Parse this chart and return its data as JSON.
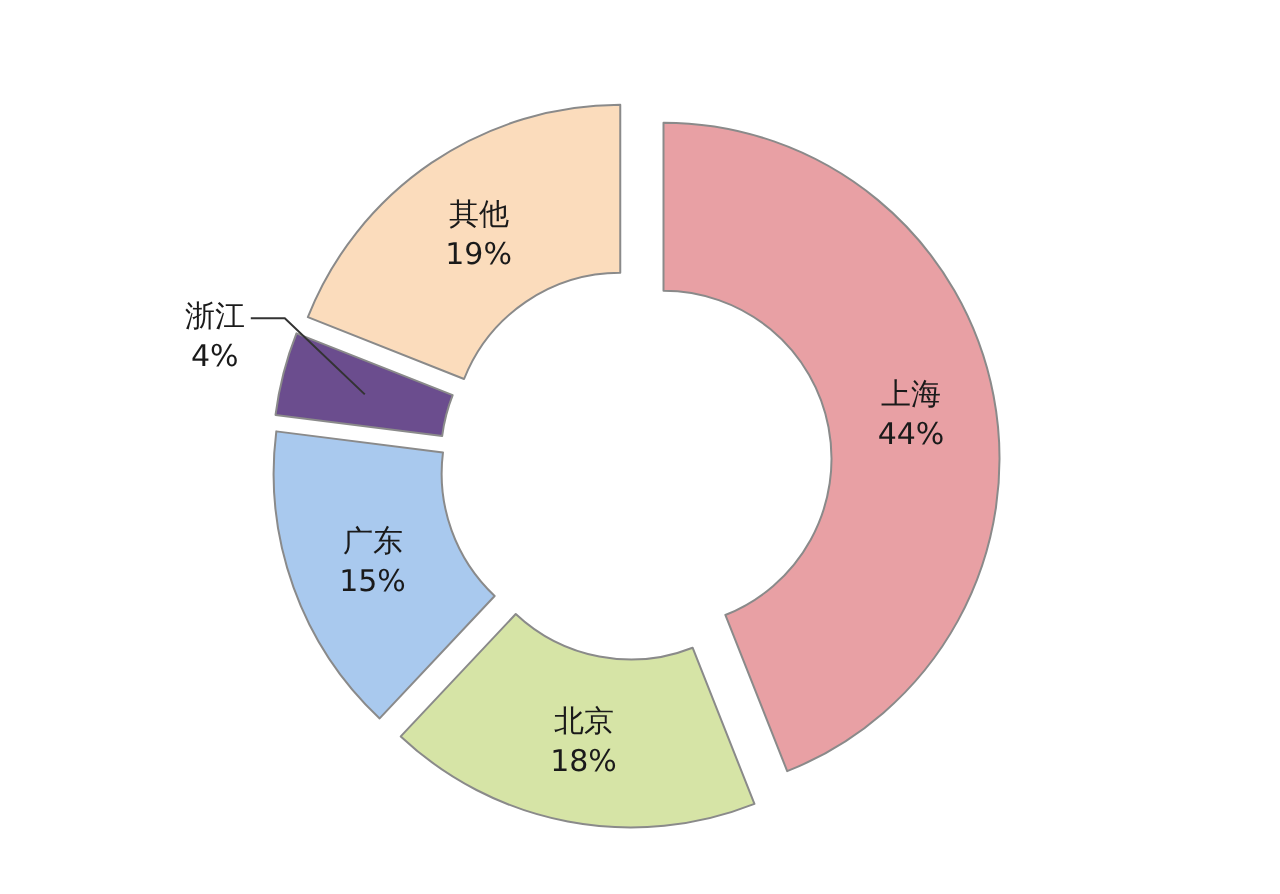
{
  "chart_data": {
    "type": "donut",
    "categories": [
      "上海",
      "北京",
      "广东",
      "浙江",
      "其他"
    ],
    "values": [
      44,
      18,
      15,
      4,
      19
    ],
    "value_labels": [
      "44%",
      "18%",
      "15%",
      "4%",
      "19%"
    ],
    "colors": [
      "#e8a0a4",
      "#d6e4a6",
      "#a9c9ee",
      "#6b4d8e",
      "#fbdcbc"
    ]
  }
}
